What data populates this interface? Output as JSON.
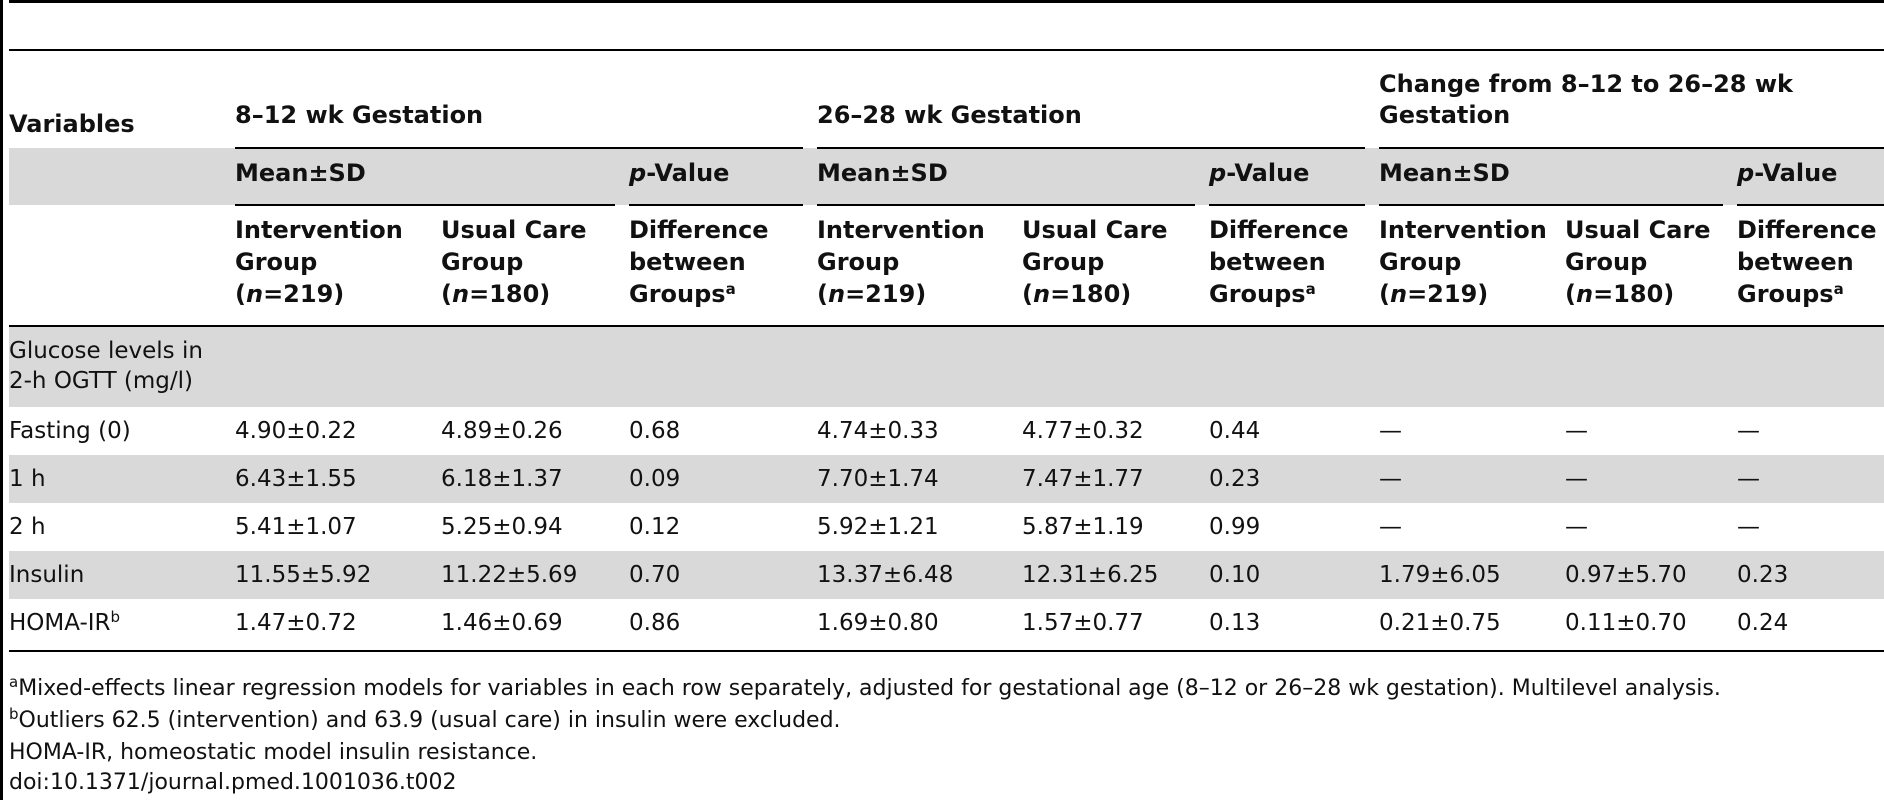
{
  "table": {
    "header": {
      "variables": "Variables",
      "groups": [
        {
          "title": "8–12 wk Gestation"
        },
        {
          "title": "26–28 wk Gestation"
        },
        {
          "title_line1": "Change from 8–12 to 26–28 wk",
          "title_line2": "Gestation"
        }
      ],
      "mean_sd": "Mean±SD",
      "p_italic": "p",
      "p_rest": "-Value",
      "intervention": {
        "line1": "Intervention",
        "line2": "Group",
        "n_italic": "n",
        "n_rest": "=219)"
      },
      "usual": {
        "line1": "Usual Care",
        "line2": "Group",
        "n_italic": "n",
        "n_rest": "=180)"
      },
      "difference": {
        "line1": "Difference",
        "line2": "between",
        "line3": "Groups",
        "sup": "a"
      }
    },
    "section_label": {
      "line1": "Glucose levels in",
      "line2": "2-h OGTT (mg/l)"
    },
    "rows": [
      {
        "label": "Fasting (0)",
        "cells": [
          "4.90±0.22",
          "4.89±0.26",
          "0.68",
          "4.74±0.33",
          "4.77±0.32",
          "0.44",
          "—",
          "—",
          "—"
        ]
      },
      {
        "label": "1 h",
        "cells": [
          "6.43±1.55",
          "6.18±1.37",
          "0.09",
          "7.70±1.74",
          "7.47±1.77",
          "0.23",
          "—",
          "—",
          "—"
        ]
      },
      {
        "label": "2 h",
        "cells": [
          "5.41±1.07",
          "5.25±0.94",
          "0.12",
          "5.92±1.21",
          "5.87±1.19",
          "0.99",
          "—",
          "—",
          "—"
        ]
      },
      {
        "label": "Insulin",
        "cells": [
          "11.55±5.92",
          "11.22±5.69",
          "0.70",
          "13.37±6.48",
          "12.31±6.25",
          "0.10",
          "1.79±6.05",
          "0.97±5.70",
          "0.23"
        ]
      },
      {
        "label": "HOMA-IR",
        "label_sup": "b",
        "cells": [
          "1.47±0.72",
          "1.46±0.69",
          "0.86",
          "1.69±0.80",
          "1.57±0.77",
          "0.13",
          "0.21±0.75",
          "0.11±0.70",
          "0.24"
        ]
      }
    ],
    "footnotes": {
      "a_sup": "a",
      "a_text": "Mixed-effects linear regression models for variables in each row separately, adjusted for gestational age (8–12 or 26–28 wk gestation). Multilevel analysis.",
      "b_sup": "b",
      "b_text": "Outliers 62.5 (intervention) and 63.9 (usual care) in insulin were excluded.",
      "abbrev": "HOMA-IR, homeostatic model insulin resistance.",
      "doi": "doi:10.1371/journal.pmed.1001036.t002"
    }
  }
}
